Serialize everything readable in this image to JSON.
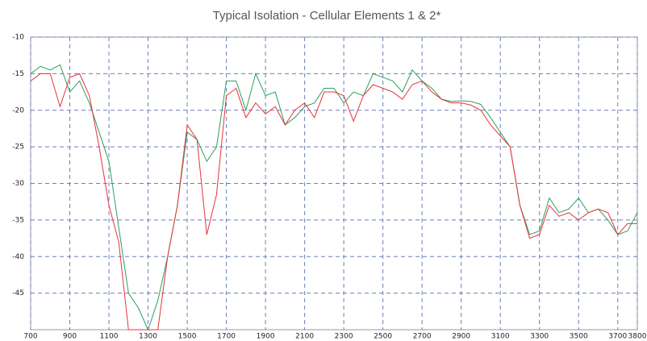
{
  "chart_data": {
    "type": "line",
    "title": "Typical Isolation - Cellular Elements 1 & 2*",
    "x": [
      700,
      750,
      800,
      850,
      900,
      950,
      1000,
      1050,
      1100,
      1150,
      1200,
      1250,
      1300,
      1350,
      1400,
      1450,
      1500,
      1550,
      1600,
      1650,
      1700,
      1750,
      1800,
      1850,
      1900,
      1950,
      2000,
      2050,
      2100,
      2150,
      2200,
      2250,
      2300,
      2350,
      2400,
      2450,
      2500,
      2550,
      2600,
      2650,
      2700,
      2750,
      2800,
      2850,
      2900,
      2950,
      3000,
      3050,
      3100,
      3150,
      3200,
      3250,
      3300,
      3350,
      3400,
      3450,
      3500,
      3550,
      3600,
      3650,
      3700,
      3750,
      3800
    ],
    "series": [
      {
        "color": "#2e9e5e",
        "values": [
          -15,
          -14,
          -14.5,
          -13.8,
          -17.5,
          -16,
          -19,
          -23,
          -27,
          -36,
          -45,
          -47,
          -50,
          -46,
          -40,
          -33,
          -23,
          -24,
          -27,
          -25,
          -16,
          -16,
          -20,
          -15,
          -18,
          -17.5,
          -22,
          -21,
          -19.5,
          -19,
          -17,
          -17,
          -19,
          -17.5,
          -18,
          -15,
          -15.5,
          -16,
          -17.5,
          -14.5,
          -16,
          -17,
          -18.5,
          -18.8,
          -18.7,
          -18.8,
          -19.2,
          -21,
          -23,
          -25,
          -33,
          -37,
          -36.5,
          -32,
          -34,
          -33.5,
          -32,
          -34,
          -33.5,
          -35,
          -37,
          -36.5,
          -34
        ]
      },
      {
        "color": "#e8323c",
        "values": [
          -16,
          -15,
          -15,
          -19.5,
          -15.5,
          -15,
          -18,
          -25,
          -33,
          -38,
          -50,
          -50,
          -50,
          -50,
          -40,
          -33,
          -22,
          -24,
          -37,
          -31.5,
          -18,
          -17,
          -21,
          -19,
          -20.5,
          -19.5,
          -22,
          -20,
          -19,
          -21,
          -17.5,
          -17.5,
          -18,
          -21.5,
          -18,
          -16.5,
          -17,
          -17.5,
          -18.5,
          -16.5,
          -16,
          -17.5,
          -18.5,
          -19,
          -19,
          -19.3,
          -20,
          -22,
          -23.5,
          -25,
          -33,
          -37.5,
          -37,
          -33,
          -34.5,
          -34,
          -35,
          -34,
          -33.5,
          -34,
          -37,
          -35.5,
          -35.5
        ]
      }
    ],
    "xlim": [
      700,
      3800
    ],
    "xticks": [
      700,
      900,
      1100,
      1300,
      1500,
      1700,
      1900,
      2100,
      2300,
      2500,
      2700,
      2900,
      3100,
      3300,
      3500,
      3700,
      3800
    ],
    "ylim": [
      -50,
      -10
    ],
    "yticks": [
      -10,
      -15,
      -20,
      -25,
      -30,
      -35,
      -40,
      -45
    ],
    "grid": true
  }
}
